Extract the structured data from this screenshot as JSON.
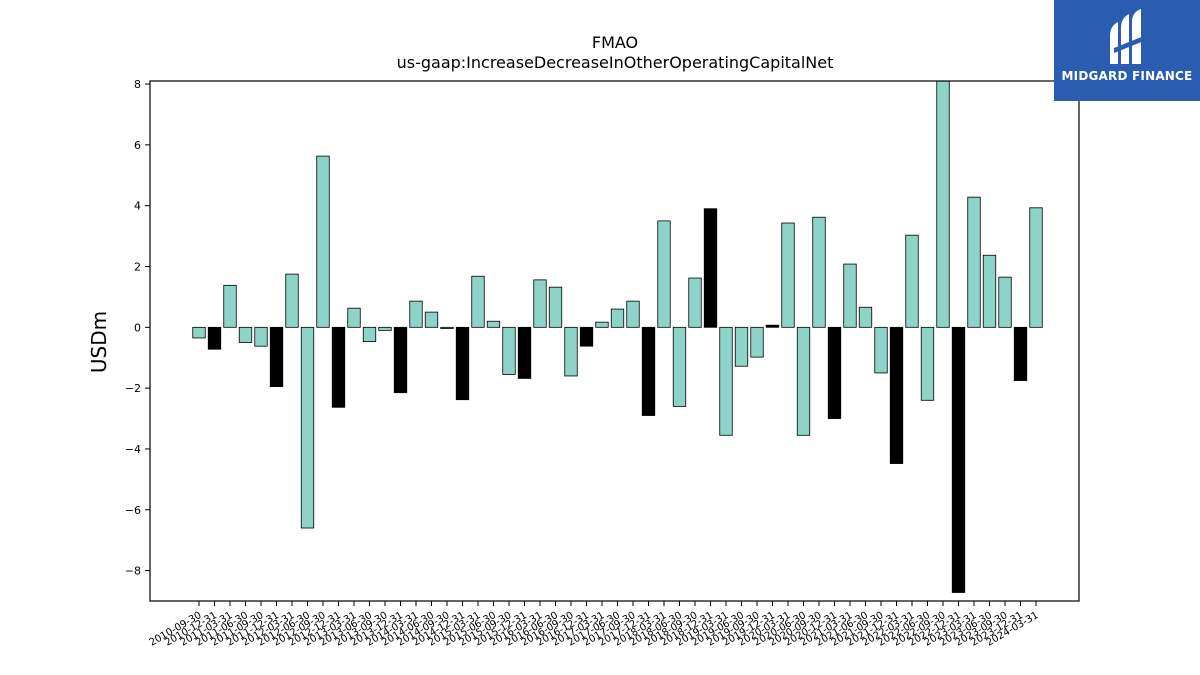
{
  "chart_data": {
    "type": "bar",
    "title": "FMAO",
    "subtitle": "us-gaap:IncreaseDecreaseInOtherOperatingCapitalNet",
    "xlabel": "",
    "ylabel": "USDm",
    "ylim": [
      -9.0,
      8.1
    ],
    "yticks": [
      8,
      6,
      4,
      2,
      0,
      -2,
      -4,
      -6,
      -8
    ],
    "ytick_labels": [
      "8",
      "6",
      "4",
      "2",
      "0",
      "−2",
      "−4",
      "−6",
      "−8"
    ],
    "bar_color": "#8dd3c7",
    "highlight_color": "#000000",
    "grid": false,
    "bars": [
      {
        "date": "2010-09-30",
        "value": -0.35,
        "highlight": false
      },
      {
        "date": "2010-12-31",
        "value": -0.72,
        "highlight": true
      },
      {
        "date": "2011-03-31",
        "value": 1.38,
        "highlight": false
      },
      {
        "date": "2011-06-30",
        "value": -0.5,
        "highlight": false
      },
      {
        "date": "2011-09-30",
        "value": -0.62,
        "highlight": false
      },
      {
        "date": "2011-12-31",
        "value": -1.95,
        "highlight": true
      },
      {
        "date": "2012-03-31",
        "value": 1.75,
        "highlight": false
      },
      {
        "date": "2012-06-30",
        "value": -6.6,
        "highlight": false
      },
      {
        "date": "2012-09-30",
        "value": 5.63,
        "highlight": false
      },
      {
        "date": "2012-12-31",
        "value": -2.63,
        "highlight": true
      },
      {
        "date": "2013-03-31",
        "value": 0.63,
        "highlight": false
      },
      {
        "date": "2013-06-30",
        "value": -0.47,
        "highlight": false
      },
      {
        "date": "2013-09-30",
        "value": -0.1,
        "highlight": false
      },
      {
        "date": "2013-12-31",
        "value": -2.15,
        "highlight": true
      },
      {
        "date": "2014-03-31",
        "value": 0.86,
        "highlight": false
      },
      {
        "date": "2014-06-30",
        "value": 0.5,
        "highlight": false
      },
      {
        "date": "2014-09-30",
        "value": -0.04,
        "highlight": false
      },
      {
        "date": "2014-12-31",
        "value": -2.38,
        "highlight": true
      },
      {
        "date": "2015-03-31",
        "value": 1.68,
        "highlight": false
      },
      {
        "date": "2015-06-30",
        "value": 0.2,
        "highlight": false
      },
      {
        "date": "2015-09-30",
        "value": -1.55,
        "highlight": false
      },
      {
        "date": "2015-12-31",
        "value": -1.68,
        "highlight": true
      },
      {
        "date": "2016-03-31",
        "value": 1.56,
        "highlight": false
      },
      {
        "date": "2016-06-30",
        "value": 1.32,
        "highlight": false
      },
      {
        "date": "2016-09-30",
        "value": -1.6,
        "highlight": false
      },
      {
        "date": "2016-12-31",
        "value": -0.62,
        "highlight": true
      },
      {
        "date": "2017-03-31",
        "value": 0.17,
        "highlight": false
      },
      {
        "date": "2017-06-30",
        "value": 0.6,
        "highlight": false
      },
      {
        "date": "2017-09-30",
        "value": 0.86,
        "highlight": false
      },
      {
        "date": "2017-12-31",
        "value": -2.9,
        "highlight": true
      },
      {
        "date": "2018-03-31",
        "value": 3.5,
        "highlight": false
      },
      {
        "date": "2018-06-30",
        "value": -2.6,
        "highlight": false
      },
      {
        "date": "2018-09-30",
        "value": 1.62,
        "highlight": false
      },
      {
        "date": "2018-12-31",
        "value": 3.9,
        "highlight": true
      },
      {
        "date": "2019-03-31",
        "value": -3.55,
        "highlight": false
      },
      {
        "date": "2019-06-30",
        "value": -1.28,
        "highlight": false
      },
      {
        "date": "2019-09-30",
        "value": -0.98,
        "highlight": false
      },
      {
        "date": "2019-12-31",
        "value": 0.07,
        "highlight": true
      },
      {
        "date": "2020-03-31",
        "value": 3.43,
        "highlight": false
      },
      {
        "date": "2020-06-30",
        "value": -3.55,
        "highlight": false
      },
      {
        "date": "2020-09-30",
        "value": 3.62,
        "highlight": false
      },
      {
        "date": "2020-12-31",
        "value": -3.0,
        "highlight": true
      },
      {
        "date": "2021-03-31",
        "value": 2.08,
        "highlight": false
      },
      {
        "date": "2021-06-30",
        "value": 0.66,
        "highlight": false
      },
      {
        "date": "2021-09-30",
        "value": -1.5,
        "highlight": false
      },
      {
        "date": "2021-12-31",
        "value": -4.48,
        "highlight": true
      },
      {
        "date": "2022-03-31",
        "value": 3.03,
        "highlight": false
      },
      {
        "date": "2022-06-30",
        "value": -2.4,
        "highlight": false
      },
      {
        "date": "2022-09-30",
        "value": 8.3,
        "highlight": false
      },
      {
        "date": "2022-12-31",
        "value": -8.72,
        "highlight": true
      },
      {
        "date": "2023-03-31",
        "value": 4.28,
        "highlight": false
      },
      {
        "date": "2023-06-30",
        "value": 2.37,
        "highlight": false
      },
      {
        "date": "2023-09-30",
        "value": 1.65,
        "highlight": false
      },
      {
        "date": "2023-12-31",
        "value": -1.75,
        "highlight": true
      },
      {
        "date": "2024-03-31",
        "value": 3.93,
        "highlight": false
      }
    ],
    "xtick_labels": [
      "2010-09-30",
      "2010-12-31",
      "2011-03-31",
      "2011-06-30",
      "2011-09-30",
      "2011-12-31",
      "2012-03-31",
      "2012-06-30",
      "2012-09-30",
      "2012-12-31",
      "2013-03-31",
      "2013-06-30",
      "2013-09-30",
      "2013-12-31",
      "2014-03-31",
      "2014-06-30",
      "2014-09-30",
      "2014-12-31",
      "2015-03-31",
      "2015-06-30",
      "2015-09-30",
      "2015-12-31",
      "2016-03-31",
      "2016-06-30",
      "2016-09-30",
      "2016-12-31",
      "2017-03-31",
      "2017-06-30",
      "2017-09-30",
      "2017-12-31",
      "2018-03-31",
      "2018-06-30",
      "2018-09-30",
      "2018-12-31",
      "2019-03-31",
      "2019-06-30",
      "2019-09-30",
      "2019-12-31",
      "2020-03-31",
      "2020-06-30",
      "2020-09-30",
      "2020-12-31",
      "2021-03-31",
      "2021-06-30",
      "2021-09-30",
      "2021-12-31",
      "2022-03-31",
      "2022-06-30",
      "2022-09-30",
      "2022-12-31",
      "2023-03-31",
      "2023-06-30",
      "2023-09-30",
      "2023-12-31",
      "2024-03-31"
    ]
  },
  "logo": {
    "text": "MIDGARD FINANCE",
    "background": "#2a5db0",
    "icon": "midgard-logo-icon"
  }
}
